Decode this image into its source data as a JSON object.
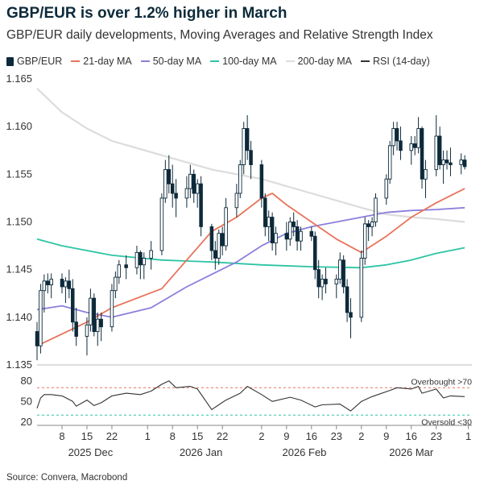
{
  "chart_data": {
    "type": "candlestick",
    "title": "GBP/EUR is over 1.2% higher in March",
    "subtitle": "GBP/EUR daily developments, Moving Averages and Relative Strength Index",
    "source": "Source: Convera, Macrobond",
    "colors": {
      "candle": "#0d2a3a",
      "ma21": "#e8735b",
      "ma50": "#8b7fdc",
      "ma100": "#2ec4a4",
      "ma200": "#dcdcdc",
      "rsi": "#333333",
      "overbought": "#e8735b",
      "oversold": "#2ec4a4"
    },
    "legend": [
      {
        "key": "gbpeur",
        "label": "GBP/EUR",
        "color": "#0d2a3a"
      },
      {
        "key": "ma21",
        "label": "21-day MA",
        "color": "#e8735b"
      },
      {
        "key": "ma50",
        "label": "50-day MA",
        "color": "#8b7fdc"
      },
      {
        "key": "ma100",
        "label": "100-day MA",
        "color": "#2ec4a4"
      },
      {
        "key": "ma200",
        "label": "200-day MA",
        "color": "#dcdcdc"
      },
      {
        "key": "rsi",
        "label": "RSI (14-day)",
        "color": "#333333"
      }
    ],
    "main_yaxis": {
      "min": 1.135,
      "max": 1.165,
      "ticks": [
        "1.135",
        "1.140",
        "1.145",
        "1.150",
        "1.155",
        "1.160",
        "1.165"
      ]
    },
    "rsi_yaxis": {
      "min": 15,
      "max": 95,
      "ticks": [
        "20",
        "50",
        "80"
      ]
    },
    "rsi_levels": {
      "overbought": 70,
      "oversold": 30,
      "overbought_label": "Overbought >70",
      "oversold_label": "Oversold <30"
    },
    "x_ticks": [
      {
        "date": "2025-12-08",
        "label": "8"
      },
      {
        "date": "2025-12-15",
        "label": "15"
      },
      {
        "date": "2025-12-22",
        "label": "22"
      },
      {
        "date": "2026-01-01",
        "label": "1"
      },
      {
        "date": "2026-01-08",
        "label": "8"
      },
      {
        "date": "2026-01-15",
        "label": "15"
      },
      {
        "date": "2026-01-22",
        "label": "22"
      },
      {
        "date": "2026-02-02",
        "label": "2"
      },
      {
        "date": "2026-02-09",
        "label": "9"
      },
      {
        "date": "2026-02-16",
        "label": "16"
      },
      {
        "date": "2026-02-23",
        "label": "23"
      },
      {
        "date": "2026-03-02",
        "label": "2"
      },
      {
        "date": "2026-03-09",
        "label": "9"
      },
      {
        "date": "2026-03-16",
        "label": "16"
      },
      {
        "date": "2026-03-23",
        "label": "23"
      },
      {
        "date": "2026-04-01",
        "label": "1"
      }
    ],
    "x_months": [
      {
        "date": "2025-12-16",
        "label": "2025 Dec"
      },
      {
        "date": "2026-01-16",
        "label": "2026 Jan"
      },
      {
        "date": "2026-02-14",
        "label": "2026 Feb"
      },
      {
        "date": "2026-03-16",
        "label": "2026 Mar"
      }
    ],
    "x_range": [
      "2025-12-01",
      "2026-04-02"
    ],
    "ohlc": [
      [
        "2025-12-01",
        1.1385,
        1.1395,
        1.1355,
        1.137
      ],
      [
        "2025-12-02",
        1.137,
        1.1435,
        1.1362,
        1.1428
      ],
      [
        "2025-12-03",
        1.1428,
        1.1445,
        1.1405,
        1.1438
      ],
      [
        "2025-12-04",
        1.1438,
        1.1446,
        1.1425,
        1.1434
      ],
      [
        "2025-12-05",
        1.1434,
        1.1446,
        1.142,
        1.144
      ],
      [
        "2025-12-08",
        1.144,
        1.1446,
        1.1425,
        1.1432
      ],
      [
        "2025-12-09",
        1.1432,
        1.1442,
        1.1415,
        1.1438
      ],
      [
        "2025-12-10",
        1.1438,
        1.145,
        1.142,
        1.143
      ],
      [
        "2025-12-11",
        1.143,
        1.144,
        1.1385,
        1.1395
      ],
      [
        "2025-12-12",
        1.1395,
        1.141,
        1.137,
        1.138
      ],
      [
        "2025-12-15",
        1.138,
        1.14,
        1.136,
        1.1392
      ],
      [
        "2025-12-16",
        1.1392,
        1.143,
        1.1385,
        1.142
      ],
      [
        "2025-12-17",
        1.142,
        1.1425,
        1.138,
        1.1385
      ],
      [
        "2025-12-18",
        1.1385,
        1.1405,
        1.137,
        1.1398
      ],
      [
        "2025-12-19",
        1.1398,
        1.1405,
        1.1375,
        1.139
      ],
      [
        "2025-12-22",
        1.139,
        1.1435,
        1.1385,
        1.1428
      ],
      [
        "2025-12-23",
        1.1428,
        1.1448,
        1.142,
        1.1442
      ],
      [
        "2025-12-24",
        1.1442,
        1.146,
        1.1435,
        1.1455
      ],
      [
        "2025-12-26",
        1.1455,
        1.1465,
        1.144,
        1.1452
      ],
      [
        "2025-12-29",
        1.1452,
        1.1475,
        1.1445,
        1.1468
      ],
      [
        "2025-12-30",
        1.1468,
        1.147,
        1.144,
        1.1455
      ],
      [
        "2025-12-31",
        1.1455,
        1.1468,
        1.144,
        1.1462
      ],
      [
        "2026-01-02",
        1.1462,
        1.148,
        1.145,
        1.147
      ],
      [
        "2026-01-05",
        1.147,
        1.153,
        1.1465,
        1.1525
      ],
      [
        "2026-01-06",
        1.1525,
        1.1565,
        1.152,
        1.1555
      ],
      [
        "2026-01-07",
        1.1555,
        1.157,
        1.153,
        1.154
      ],
      [
        "2026-01-08",
        1.154,
        1.156,
        1.1515,
        1.153
      ],
      [
        "2026-01-09",
        1.153,
        1.1545,
        1.1505,
        1.1525
      ],
      [
        "2026-01-12",
        1.1525,
        1.1548,
        1.1515,
        1.1535
      ],
      [
        "2026-01-13",
        1.1535,
        1.156,
        1.1525,
        1.155
      ],
      [
        "2026-01-14",
        1.155,
        1.1555,
        1.152,
        1.153
      ],
      [
        "2026-01-15",
        1.153,
        1.1545,
        1.1515,
        1.154
      ],
      [
        "2026-01-16",
        1.154,
        1.1548,
        1.1485,
        1.1495
      ],
      [
        "2026-01-19",
        1.1495,
        1.1498,
        1.146,
        1.147
      ],
      [
        "2026-01-20",
        1.147,
        1.148,
        1.145,
        1.1462
      ],
      [
        "2026-01-21",
        1.1462,
        1.1492,
        1.1455,
        1.1488
      ],
      [
        "2026-01-22",
        1.1488,
        1.1495,
        1.1465,
        1.1475
      ],
      [
        "2026-01-23",
        1.1475,
        1.1525,
        1.147,
        1.1515
      ],
      [
        "2026-01-26",
        1.1515,
        1.154,
        1.1505,
        1.153
      ],
      [
        "2026-01-27",
        1.153,
        1.1565,
        1.1525,
        1.156
      ],
      [
        "2026-01-28",
        1.156,
        1.1605,
        1.155,
        1.1598
      ],
      [
        "2026-01-29",
        1.1598,
        1.1612,
        1.1565,
        1.1575
      ],
      [
        "2026-01-30",
        1.1575,
        1.1585,
        1.1545,
        1.156
      ],
      [
        "2026-02-02",
        1.156,
        1.1565,
        1.1515,
        1.1525
      ],
      [
        "2026-02-03",
        1.1525,
        1.153,
        1.1485,
        1.1495
      ],
      [
        "2026-02-04",
        1.1495,
        1.1512,
        1.148,
        1.1505
      ],
      [
        "2026-02-05",
        1.1505,
        1.151,
        1.147,
        1.1478
      ],
      [
        "2026-02-06",
        1.1478,
        1.1495,
        1.1465,
        1.1488
      ],
      [
        "2026-02-09",
        1.1488,
        1.15,
        1.147,
        1.1482
      ],
      [
        "2026-02-10",
        1.1482,
        1.1505,
        1.1475,
        1.15
      ],
      [
        "2026-02-11",
        1.15,
        1.151,
        1.1485,
        1.1495
      ],
      [
        "2026-02-12",
        1.1495,
        1.1502,
        1.147,
        1.148
      ],
      [
        "2026-02-13",
        1.148,
        1.1495,
        1.147,
        1.149
      ],
      [
        "2026-02-16",
        1.149,
        1.1495,
        1.148,
        1.1485
      ],
      [
        "2026-02-17",
        1.1485,
        1.149,
        1.144,
        1.145
      ],
      [
        "2026-02-18",
        1.145,
        1.146,
        1.142,
        1.1432
      ],
      [
        "2026-02-19",
        1.1432,
        1.1445,
        1.1418,
        1.144
      ],
      [
        "2026-02-20",
        1.144,
        1.1452,
        1.1425,
        1.1435
      ],
      [
        "2026-02-23",
        1.1435,
        1.1445,
        1.142,
        1.144
      ],
      [
        "2026-02-24",
        1.144,
        1.1468,
        1.1435,
        1.146
      ],
      [
        "2026-02-25",
        1.146,
        1.1465,
        1.1425,
        1.1432
      ],
      [
        "2026-02-26",
        1.1432,
        1.144,
        1.1395,
        1.1405
      ],
      [
        "2026-02-27",
        1.1405,
        1.142,
        1.1378,
        1.14
      ],
      [
        "2026-03-02",
        1.14,
        1.147,
        1.1395,
        1.1462
      ],
      [
        "2026-03-03",
        1.1462,
        1.1505,
        1.1455,
        1.1498
      ],
      [
        "2026-03-04",
        1.1498,
        1.1502,
        1.148,
        1.1495
      ],
      [
        "2026-03-05",
        1.1495,
        1.1505,
        1.1485,
        1.15
      ],
      [
        "2026-03-06",
        1.15,
        1.153,
        1.1495,
        1.1525
      ],
      [
        "2026-03-09",
        1.1525,
        1.155,
        1.1518,
        1.1545
      ],
      [
        "2026-03-10",
        1.1545,
        1.1585,
        1.154,
        1.158
      ],
      [
        "2026-03-11",
        1.158,
        1.1605,
        1.157,
        1.1598
      ],
      [
        "2026-03-12",
        1.1598,
        1.1605,
        1.1575,
        1.1585
      ],
      [
        "2026-03-13",
        1.1585,
        1.16,
        1.1565,
        1.1575
      ],
      [
        "2026-03-16",
        1.1575,
        1.159,
        1.156,
        1.1582
      ],
      [
        "2026-03-17",
        1.1582,
        1.159,
        1.157,
        1.1578
      ],
      [
        "2026-03-18",
        1.1578,
        1.161,
        1.1572,
        1.1598
      ],
      [
        "2026-03-19",
        1.1598,
        1.16,
        1.1535,
        1.1545
      ],
      [
        "2026-03-20",
        1.1545,
        1.1565,
        1.1525,
        1.1555
      ],
      [
        "2026-03-23",
        1.1555,
        1.1612,
        1.1548,
        1.159
      ],
      [
        "2026-03-24",
        1.159,
        1.16,
        1.1555,
        1.156
      ],
      [
        "2026-03-25",
        1.156,
        1.1575,
        1.154,
        1.1565
      ],
      [
        "2026-03-26",
        1.1565,
        1.1575,
        1.1555,
        1.1562
      ],
      [
        "2026-03-27",
        1.1562,
        1.1578,
        1.1548,
        1.156
      ],
      [
        "2026-03-30",
        1.156,
        1.1572,
        1.155,
        1.1565
      ],
      [
        "2026-03-31",
        1.1565,
        1.157,
        1.1555,
        1.1558
      ]
    ],
    "ma_anchors": {
      "ma21": [
        [
          "2025-12-01",
          1.137
        ],
        [
          "2025-12-15",
          1.1395
        ],
        [
          "2025-12-22",
          1.141
        ],
        [
          "2026-01-05",
          1.143
        ],
        [
          "2026-01-12",
          1.146
        ],
        [
          "2026-01-19",
          1.149
        ],
        [
          "2026-01-26",
          1.1505
        ],
        [
          "2026-02-02",
          1.1525
        ],
        [
          "2026-02-05",
          1.153
        ],
        [
          "2026-02-09",
          1.1518
        ],
        [
          "2026-02-16",
          1.15
        ],
        [
          "2026-02-23",
          1.1482
        ],
        [
          "2026-03-02",
          1.1468
        ],
        [
          "2026-03-09",
          1.1485
        ],
        [
          "2026-03-16",
          1.1505
        ],
        [
          "2026-03-23",
          1.152
        ],
        [
          "2026-03-31",
          1.1535
        ]
      ],
      "ma50": [
        [
          "2025-12-01",
          1.1408
        ],
        [
          "2025-12-08",
          1.1412
        ],
        [
          "2025-12-15",
          1.1405
        ],
        [
          "2025-12-22",
          1.14
        ],
        [
          "2026-01-02",
          1.141
        ],
        [
          "2026-01-12",
          1.1432
        ],
        [
          "2026-01-19",
          1.1445
        ],
        [
          "2026-01-26",
          1.1458
        ],
        [
          "2026-02-02",
          1.1475
        ],
        [
          "2026-02-09",
          1.1488
        ],
        [
          "2026-02-16",
          1.1495
        ],
        [
          "2026-02-23",
          1.15
        ],
        [
          "2026-03-02",
          1.1505
        ],
        [
          "2026-03-09",
          1.151
        ],
        [
          "2026-03-16",
          1.1512
        ],
        [
          "2026-03-23",
          1.1513
        ],
        [
          "2026-03-31",
          1.1515
        ]
      ],
      "ma100": [
        [
          "2025-12-01",
          1.1482
        ],
        [
          "2025-12-08",
          1.1475
        ],
        [
          "2025-12-15",
          1.147
        ],
        [
          "2025-12-22",
          1.1465
        ],
        [
          "2026-01-05",
          1.146
        ],
        [
          "2026-01-19",
          1.1458
        ],
        [
          "2026-02-02",
          1.1455
        ],
        [
          "2026-02-16",
          1.1453
        ],
        [
          "2026-03-02",
          1.1452
        ],
        [
          "2026-03-09",
          1.1455
        ],
        [
          "2026-03-16",
          1.146
        ],
        [
          "2026-03-23",
          1.1467
        ],
        [
          "2026-03-31",
          1.1473
        ]
      ],
      "ma200": [
        [
          "2025-12-01",
          1.164
        ],
        [
          "2025-12-08",
          1.1615
        ],
        [
          "2025-12-15",
          1.1598
        ],
        [
          "2025-12-22",
          1.1585
        ],
        [
          "2026-01-05",
          1.157
        ],
        [
          "2026-01-19",
          1.1555
        ],
        [
          "2026-02-02",
          1.1545
        ],
        [
          "2026-02-16",
          1.153
        ],
        [
          "2026-03-02",
          1.1515
        ],
        [
          "2026-03-09",
          1.1508
        ],
        [
          "2026-03-16",
          1.1505
        ],
        [
          "2026-03-23",
          1.1503
        ],
        [
          "2026-03-31",
          1.15
        ]
      ]
    },
    "rsi": [
      [
        "2025-12-01",
        40
      ],
      [
        "2025-12-02",
        55
      ],
      [
        "2025-12-03",
        60
      ],
      [
        "2025-12-05",
        60
      ],
      [
        "2025-12-08",
        58
      ],
      [
        "2025-12-11",
        50
      ],
      [
        "2025-12-12",
        43
      ],
      [
        "2025-12-15",
        52
      ],
      [
        "2025-12-17",
        44
      ],
      [
        "2025-12-19",
        48
      ],
      [
        "2025-12-22",
        58
      ],
      [
        "2025-12-26",
        62
      ],
      [
        "2025-12-30",
        60
      ],
      [
        "2026-01-02",
        65
      ],
      [
        "2026-01-05",
        75
      ],
      [
        "2026-01-07",
        80
      ],
      [
        "2026-01-09",
        70
      ],
      [
        "2026-01-13",
        72
      ],
      [
        "2026-01-15",
        68
      ],
      [
        "2026-01-19",
        38
      ],
      [
        "2026-01-21",
        45
      ],
      [
        "2026-01-23",
        52
      ],
      [
        "2026-01-27",
        62
      ],
      [
        "2026-01-29",
        72
      ],
      [
        "2026-02-02",
        60
      ],
      [
        "2026-02-05",
        50
      ],
      [
        "2026-02-10",
        56
      ],
      [
        "2026-02-13",
        52
      ],
      [
        "2026-02-17",
        42
      ],
      [
        "2026-02-19",
        45
      ],
      [
        "2026-02-24",
        46
      ],
      [
        "2026-02-27",
        36
      ],
      [
        "2026-03-02",
        50
      ],
      [
        "2026-03-05",
        57
      ],
      [
        "2026-03-10",
        66
      ],
      [
        "2026-03-12",
        70
      ],
      [
        "2026-03-16",
        68
      ],
      [
        "2026-03-18",
        72
      ],
      [
        "2026-03-19",
        62
      ],
      [
        "2026-03-23",
        68
      ],
      [
        "2026-03-25",
        55
      ],
      [
        "2026-03-27",
        58
      ],
      [
        "2026-03-31",
        57
      ]
    ]
  }
}
